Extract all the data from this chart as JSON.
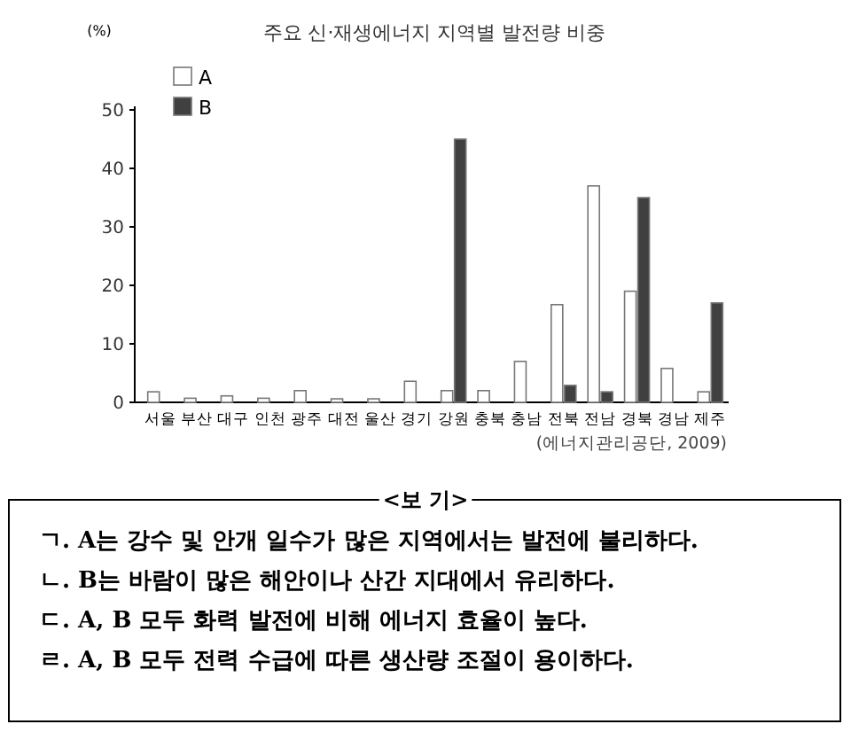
{
  "chart_data": {
    "type": "bar",
    "title": "주요 신·재생에너지 지역별 발전량 비중",
    "ylabel": "(%)",
    "categories": [
      "서울",
      "부산",
      "대구",
      "인천",
      "광주",
      "대전",
      "울산",
      "경기",
      "강원",
      "충북",
      "충남",
      "전북",
      "전남",
      "경북",
      "경남",
      "제주"
    ],
    "series": [
      {
        "name": "A",
        "color": "#ffffff",
        "values": [
          1.8,
          0.7,
          1.1,
          0.7,
          2.0,
          0.6,
          0.6,
          3.6,
          2.0,
          2.0,
          7.0,
          16.7,
          37,
          19,
          5.8,
          1.8
        ]
      },
      {
        "name": "B",
        "color": "#404040",
        "values": [
          null,
          null,
          null,
          null,
          null,
          null,
          null,
          null,
          45,
          null,
          null,
          2.9,
          1.8,
          35,
          null,
          17
        ]
      }
    ],
    "ylim": [
      0,
      50
    ],
    "yticks": [
      0,
      10,
      20,
      30,
      40,
      50
    ],
    "grid": false,
    "legend": "top left",
    "annotations": [
      "(에너지관리공단, 2009)",
      "<보 기>",
      "ㄱ. A는 강수 및 안개 일수가 많은 지역에서는 발전에 불리하다.",
      "ㄴ. B는 바람이 많은 해안이나 산간 지대에서 유리하다.",
      "ㄷ. A, B 모두 화력 발전에 비해 에너지 효율이 높다.",
      "ㄹ. A, B 모두 전력 수급에 따른 생산량 조절이 용이하다."
    ]
  }
}
